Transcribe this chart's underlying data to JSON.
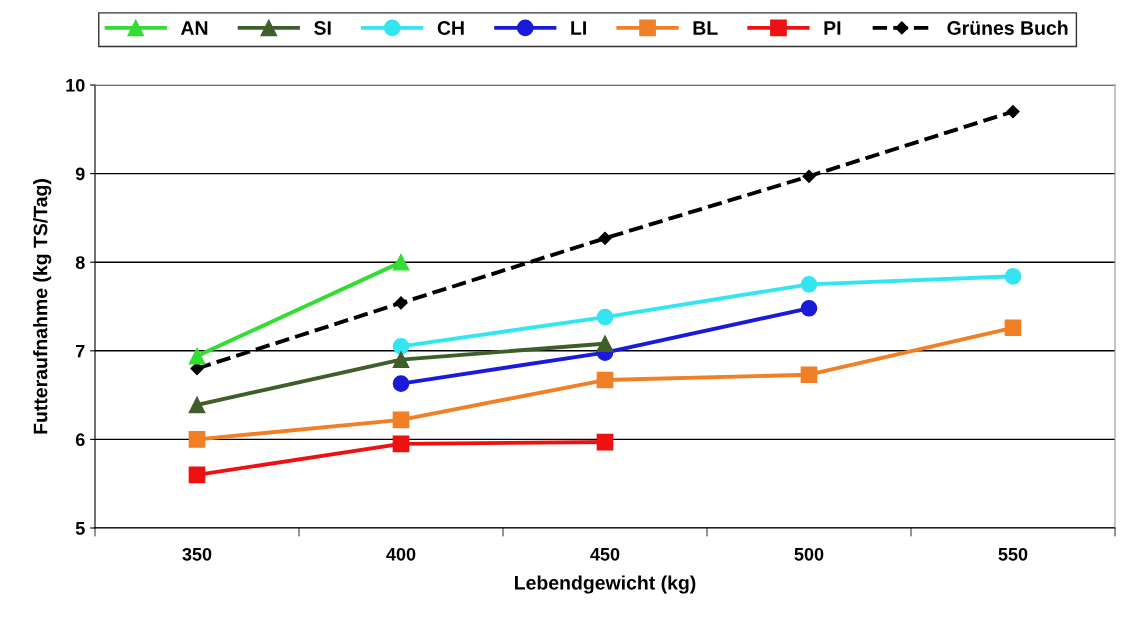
{
  "chart_data": {
    "type": "line",
    "xlabel": "Lebendgewicht (kg)",
    "ylabel": "Futteraufnahme (kg TS/Tag)",
    "categories": [
      "350",
      "400",
      "450",
      "500",
      "550"
    ],
    "series": [
      {
        "name": "AN",
        "color": "#33dd33",
        "marker": "triangle",
        "values": [
          6.94,
          8.0,
          null,
          null,
          null
        ]
      },
      {
        "name": "SI",
        "color": "#3f5f2a",
        "marker": "triangle",
        "values": [
          6.39,
          6.9,
          7.08,
          null,
          null
        ]
      },
      {
        "name": "CH",
        "color": "#33e5f0",
        "marker": "circle",
        "values": [
          null,
          7.05,
          7.38,
          7.75,
          7.84
        ]
      },
      {
        "name": "LI",
        "color": "#1a1adb",
        "marker": "circle",
        "values": [
          null,
          6.63,
          6.98,
          7.48,
          null
        ]
      },
      {
        "name": "BL",
        "color": "#f07f26",
        "marker": "square",
        "values": [
          6.0,
          6.22,
          6.67,
          6.73,
          7.26
        ]
      },
      {
        "name": "PI",
        "color": "#ee1111",
        "marker": "square",
        "values": [
          5.6,
          5.95,
          5.97,
          null,
          null
        ]
      },
      {
        "name": "Grünes Buch",
        "color": "#000000",
        "marker": "diamond",
        "line_style": "dashed",
        "values": [
          6.8,
          7.54,
          8.27,
          8.97,
          9.7
        ]
      }
    ],
    "ylim": [
      5,
      10
    ],
    "yticks": [
      5,
      6,
      7,
      8,
      9,
      10
    ],
    "grid": "y",
    "legend": "top"
  }
}
